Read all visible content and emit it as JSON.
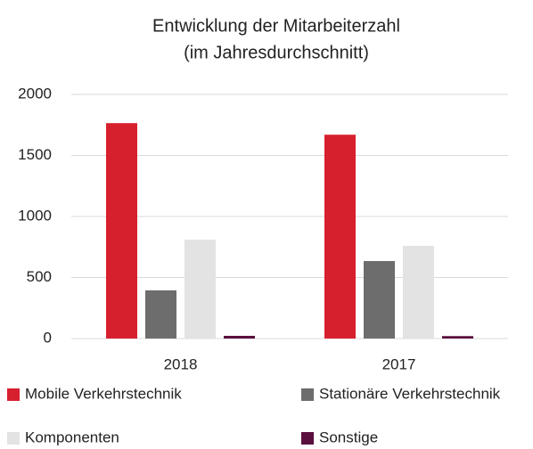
{
  "chart_data": {
    "type": "bar",
    "title": "Entwicklung der Mitarbeiterzahl",
    "subtitle": "(im Jahresdurchschnitt)",
    "categories": [
      "2018",
      "2017"
    ],
    "series": [
      {
        "name": "Mobile Verkehrstechnik",
        "color": "#d7202e",
        "values": [
          1765,
          1670
        ]
      },
      {
        "name": "Stationäre Verkehrstechnik",
        "color": "#6d6d6d",
        "values": [
          395,
          635
        ]
      },
      {
        "name": "Komponenten",
        "color": "#e3e3e3",
        "values": [
          810,
          760
        ]
      },
      {
        "name": "Sonstige",
        "color": "#5b0f3e",
        "values": [
          22,
          20
        ]
      }
    ],
    "ylim": [
      0,
      2000
    ],
    "yticks": [
      0,
      500,
      1000,
      1500,
      2000
    ],
    "grid": true
  }
}
